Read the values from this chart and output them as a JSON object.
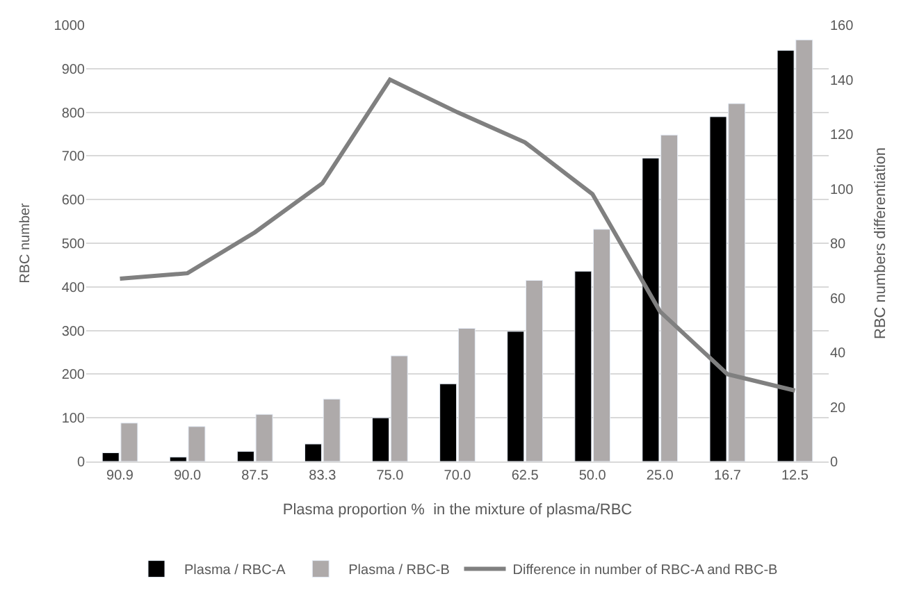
{
  "chart_data": {
    "type": "bar",
    "xlabel": "Plasma proportion %  in the mixture of plasma/RBC",
    "ylabel": "RBC number",
    "y2label": "RBC numbers differentiation",
    "categories": [
      "90.9",
      "90.0",
      "87.5",
      "83.3",
      "75.0",
      "70.0",
      "62.5",
      "50.0",
      "25.0",
      "16.7",
      "12.5"
    ],
    "series": [
      {
        "name": "Plasma / RBC-A",
        "color": "#000000",
        "values": [
          20,
          10,
          23,
          40,
          100,
          178,
          298,
          436,
          695,
          790,
          942
        ]
      },
      {
        "name": "Plasma / RBC-B",
        "color": "#aeaaaa",
        "values": [
          88,
          80,
          108,
          143,
          242,
          305,
          415,
          532,
          748,
          820,
          966
        ]
      },
      {
        "name": "Difference in number of RBC-A and RBC-B",
        "type": "line",
        "axis": "y2",
        "color": "#808080",
        "values": [
          67,
          69,
          84,
          102,
          140,
          128,
          117,
          98,
          55,
          32,
          26
        ]
      }
    ],
    "ylim": [
      0,
      1000
    ],
    "yticks": [
      0,
      100,
      200,
      300,
      400,
      500,
      600,
      700,
      800,
      900,
      1000
    ],
    "y2lim": [
      0,
      160
    ],
    "y2ticks": [
      0,
      20,
      40,
      60,
      80,
      100,
      120,
      140,
      160
    ],
    "grid": "y",
    "legend": "bottom",
    "marker": "none",
    "line_style": "solid"
  }
}
